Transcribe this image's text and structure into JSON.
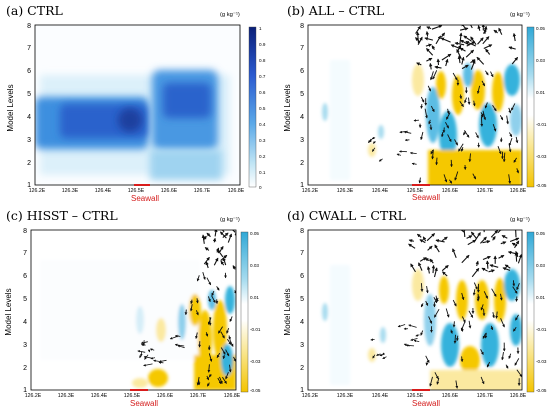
{
  "colors": {
    "wall": "#d81c1c",
    "blue_dark": "#102d8c",
    "cyan": "#36b2dc",
    "yellow": "#f5c800",
    "arrow": "#111111"
  },
  "units_text": "(g kg⁻¹)",
  "seawall_label": "Seawall",
  "ylabel": "Model Levels",
  "xticks": [
    "126.2E",
    "126.3E",
    "126.4E",
    "126.5E",
    "126.6E",
    "126.7E",
    "126.8E"
  ],
  "yticks": [
    "1",
    "2",
    "3",
    "4",
    "5",
    "6",
    "7",
    "8"
  ],
  "colorbars": {
    "ctrl": [
      "1",
      "0.9",
      "0.8",
      "0.7",
      "0.6",
      "0.5",
      "0.4",
      "0.3",
      "0.2",
      "0.1",
      "0"
    ],
    "diff": [
      "0.05",
      "0.03",
      "0.01",
      "-0.01",
      "-0.03",
      "-0.05"
    ]
  },
  "panels": [
    {
      "id": "a",
      "title": "(a) CTRL"
    },
    {
      "id": "b",
      "title": "(b) ALL – CTRL"
    },
    {
      "id": "c",
      "title": "(c) HISST – CTRL"
    },
    {
      "id": "d",
      "title": "(d) CWALL – CTRL"
    }
  ],
  "chart_data": [
    {
      "type": "heatmap",
      "title": "(a) CTRL",
      "ylabel": "Model Levels",
      "units": "(g kg⁻¹)",
      "x_range": [
        "126.2E",
        "126.8E"
      ],
      "y_range": [
        1,
        8
      ],
      "colorbar": [
        0,
        1
      ],
      "blobs": [
        {
          "x": [
            126.2,
            126.5
          ],
          "level": [
            3.2,
            4.6
          ],
          "value": 0.55
        },
        {
          "x": [
            126.55,
            126.75
          ],
          "level": [
            3.2,
            5.8
          ],
          "value": 0.6
        }
      ]
    },
    {
      "type": "heatmap",
      "title": "(b) ALL – CTRL",
      "ylabel": "Model Levels",
      "units": "(g kg⁻¹)",
      "x_range": [
        "126.2E",
        "126.8E"
      ],
      "y_range": [
        1,
        8
      ],
      "colorbar": [
        -0.05,
        0.05
      ],
      "vectors": true
    },
    {
      "type": "heatmap",
      "title": "(c) HISST – CTRL",
      "ylabel": "Model Levels",
      "units": "(g kg⁻¹)",
      "x_range": [
        "126.2E",
        "126.8E"
      ],
      "y_range": [
        1,
        8
      ],
      "colorbar": [
        -0.05,
        0.05
      ],
      "vectors": true
    },
    {
      "type": "heatmap",
      "title": "(d) CWALL – CTRL",
      "ylabel": "Model Levels",
      "units": "(g kg⁻¹)",
      "x_range": [
        "126.2E",
        "126.8E"
      ],
      "y_range": [
        1,
        8
      ],
      "colorbar": [
        -0.05,
        0.05
      ],
      "vectors": true
    }
  ]
}
